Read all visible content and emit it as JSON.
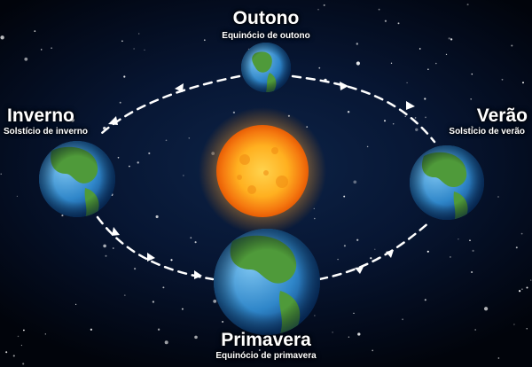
{
  "seasons": {
    "autumn": {
      "title": "Outono",
      "subtitle": "Equinócio de outono"
    },
    "winter": {
      "title": "Inverno",
      "subtitle": "Solstício de inverno"
    },
    "summer": {
      "title": "Verão",
      "subtitle": "Solstício de verão"
    },
    "spring": {
      "title": "Primavera",
      "subtitle": "Equinócio de primavera"
    }
  },
  "colors": {
    "background": "#030a1a",
    "sun": "#ff9a1a",
    "ocean": "#2f86c9",
    "land": "#4f9a3a",
    "orbit": "#ffffff"
  },
  "icons": [
    "sun-icon",
    "earth-icon",
    "orbit-arrow-icon"
  ]
}
